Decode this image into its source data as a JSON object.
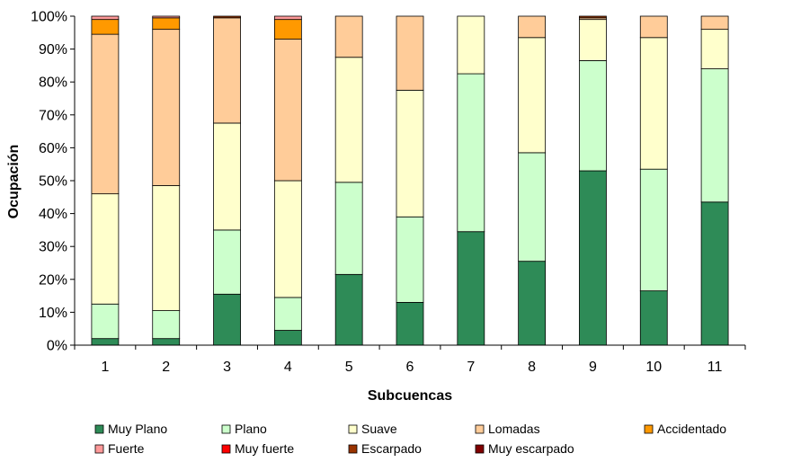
{
  "chart_data": {
    "type": "bar",
    "stacked": true,
    "percent": true,
    "xlabel": "Subcuencas",
    "ylabel": "Ocupación",
    "ylim": [
      0,
      100
    ],
    "yticks": [
      "0%",
      "10%",
      "20%",
      "30%",
      "40%",
      "50%",
      "60%",
      "70%",
      "80%",
      "90%",
      "100%"
    ],
    "categories": [
      "1",
      "2",
      "3",
      "4",
      "5",
      "6",
      "7",
      "8",
      "9",
      "10",
      "11"
    ],
    "grid": false,
    "legend_position": "bottom",
    "series": [
      {
        "name": "Muy Plano",
        "color": "#2e8b57",
        "values": [
          2,
          2,
          15.5,
          4.5,
          21.5,
          13,
          34.5,
          25.5,
          53,
          16.5,
          43.5
        ]
      },
      {
        "name": "Plano",
        "color": "#ccffcc",
        "values": [
          10.5,
          8.5,
          19.5,
          10,
          28,
          26,
          48,
          33,
          33.5,
          37,
          40.5
        ]
      },
      {
        "name": "Suave",
        "color": "#ffffcc",
        "values": [
          33.5,
          38,
          32.5,
          35.5,
          38,
          38.5,
          17.5,
          35,
          12.5,
          40,
          12
        ]
      },
      {
        "name": "Lomadas",
        "color": "#ffcc99",
        "values": [
          48.5,
          47.5,
          32,
          43,
          12.5,
          22.5,
          0,
          6.5,
          0.5,
          6.5,
          4
        ]
      },
      {
        "name": "Accidentado",
        "color": "#ff9900",
        "values": [
          4.5,
          3.5,
          0,
          6,
          0,
          0,
          0,
          0,
          0,
          0,
          0
        ]
      },
      {
        "name": "Fuerte",
        "color": "#ff9999",
        "values": [
          1,
          0.5,
          0,
          1,
          0,
          0,
          0,
          0,
          0,
          0,
          0
        ]
      },
      {
        "name": "Muy fuerte",
        "color": "#ff0000",
        "values": [
          0,
          0,
          0,
          0,
          0,
          0,
          0,
          0,
          0,
          0,
          0
        ]
      },
      {
        "name": "Escarpado",
        "color": "#993300",
        "values": [
          0,
          0,
          0.5,
          0,
          0,
          0,
          0,
          0,
          0.5,
          0,
          0
        ]
      },
      {
        "name": "Muy escarpado",
        "color": "#800000",
        "values": [
          0,
          0,
          0,
          0,
          0,
          0,
          0,
          0,
          0,
          0,
          0
        ]
      }
    ]
  }
}
